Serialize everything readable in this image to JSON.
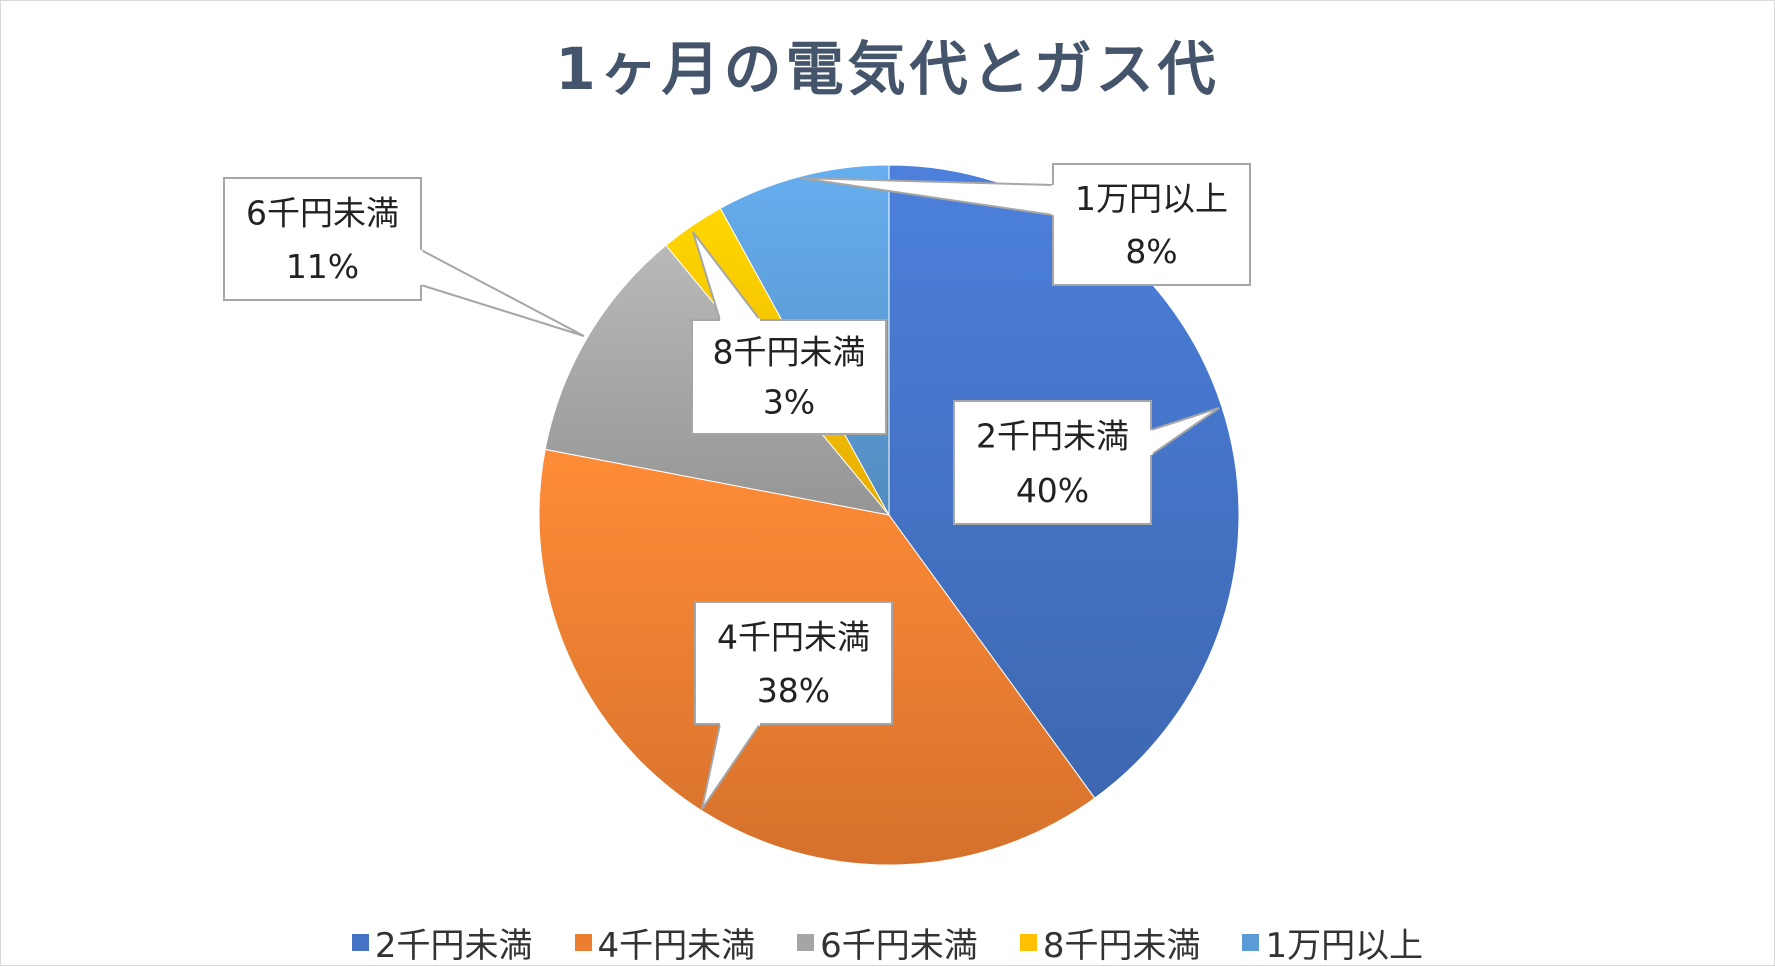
{
  "chart_data": {
    "type": "pie",
    "title": "1ヶ月の電気代とガス代",
    "categories": [
      "2千円未満",
      "4千円未満",
      "6千円未満",
      "8千円未満",
      "1万円以上"
    ],
    "values": [
      40,
      38,
      11,
      3,
      8
    ],
    "data_labels": [
      "40%",
      "38%",
      "11%",
      "3%",
      "8%"
    ],
    "colors": [
      "#4472c4",
      "#ed7d31",
      "#a5a5a5",
      "#ffc000",
      "#5b9bd5"
    ],
    "start": "12 o'clock, clockwise",
    "legend": "bottom"
  }
}
